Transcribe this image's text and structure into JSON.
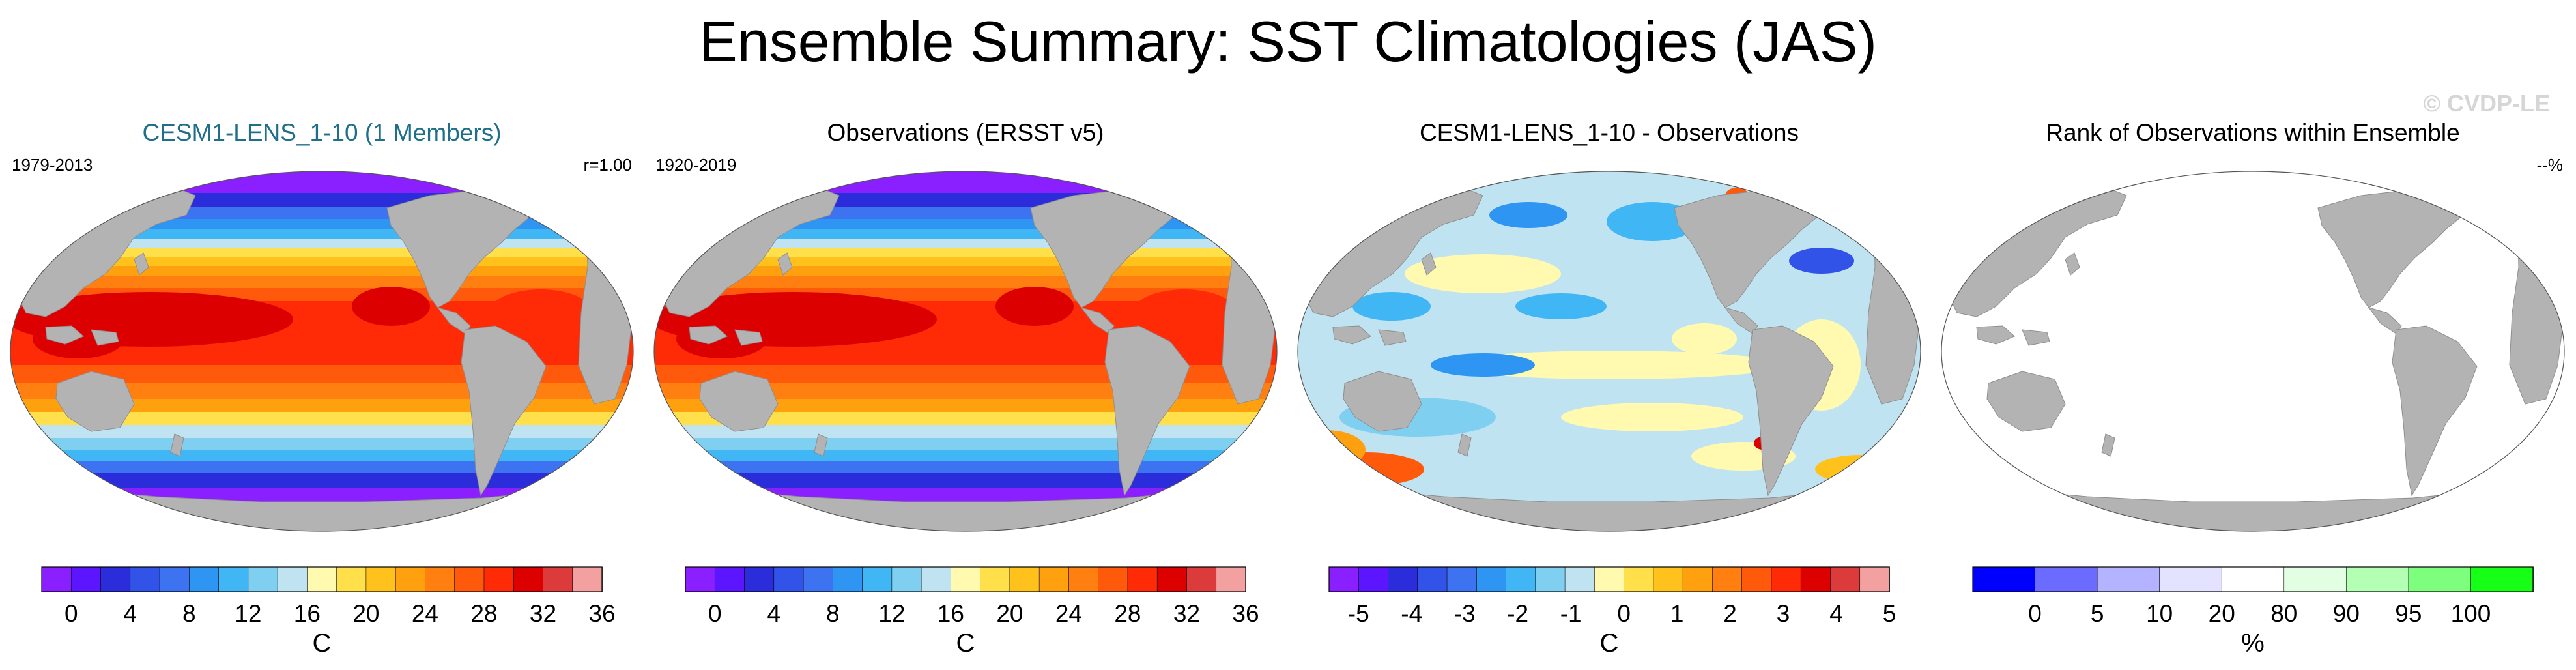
{
  "figure": {
    "title": "Ensemble Summary: SST Climatologies (JAS)",
    "watermark": "© CVDP-LE"
  },
  "colors": {
    "land": "#b3b3b3",
    "title_accent": "#1f6f8b",
    "sst_palette": [
      "#8a1fff",
      "#5c16ff",
      "#2b2ddb",
      "#3253e8",
      "#3d73f0",
      "#2e95f2",
      "#41b6f5",
      "#7fd0f0",
      "#c0e3f2",
      "#fffab0",
      "#ffdf4a",
      "#ffc21c",
      "#ffa10f",
      "#ff8010",
      "#ff5a0c",
      "#ff2a06",
      "#dd0000",
      "#dc3b3b",
      "#f2a0a0"
    ],
    "diff_palette": [
      "#8a1fff",
      "#5c16ff",
      "#2b2ddb",
      "#3253e8",
      "#3d73f0",
      "#2e95f2",
      "#41b6f5",
      "#7fd0f0",
      "#c0e3f2",
      "#fffab0",
      "#ffdf4a",
      "#ffc21c",
      "#ffa10f",
      "#ff8010",
      "#ff5a0c",
      "#ff2a06",
      "#dd0000",
      "#dc3b3b",
      "#f2a0a0"
    ],
    "rank_palette": [
      "#0000ff",
      "#6b6bff",
      "#b3b3ff",
      "#e3e3ff",
      "#ffffff",
      "#e3ffe3",
      "#b3ffb3",
      "#7dff7d",
      "#17ff17"
    ]
  },
  "panels": [
    {
      "title": "CESM1-LENS_1-10 (1 Members)",
      "title_color": "#1f6f8b",
      "left_label": "1979-2013",
      "right_label": "r=1.00",
      "map": "sst",
      "colorbar": {
        "palette": "sst_palette",
        "ticks": [
          "0",
          "4",
          "8",
          "12",
          "16",
          "20",
          "24",
          "28",
          "32",
          "36"
        ],
        "tick_start": 1,
        "unit": "C"
      }
    },
    {
      "title": "Observations (ERSST v5)",
      "title_color": "#000000",
      "left_label": "1920-2019",
      "right_label": "",
      "map": "sst",
      "colorbar": {
        "palette": "sst_palette",
        "ticks": [
          "0",
          "4",
          "8",
          "12",
          "16",
          "20",
          "24",
          "28",
          "32",
          "36"
        ],
        "tick_start": 1,
        "unit": "C"
      }
    },
    {
      "title": "CESM1-LENS_1-10 - Observations",
      "title_color": "#000000",
      "left_label": "",
      "right_label": "",
      "map": "diff",
      "colorbar": {
        "palette": "diff_palette",
        "ticks": [
          "-5",
          "-4",
          "-3",
          "-2",
          "-1",
          "0",
          "1",
          "2",
          "3",
          "4",
          "5"
        ],
        "tick_start": 1,
        "unit": "C"
      }
    },
    {
      "title": "Rank of Observations within Ensemble",
      "title_color": "#000000",
      "left_label": "",
      "right_label": "--%",
      "map": "rank",
      "colorbar": {
        "palette": "rank_palette",
        "ticks": [
          "0",
          "5",
          "10",
          "20",
          "80",
          "90",
          "95",
          "100"
        ],
        "tick_start": 1,
        "unit": "%"
      }
    }
  ],
  "chart_data": [
    {
      "type": "heatmap",
      "title": "CESM1-LENS_1-10 (1 Members)",
      "period": "1979-2013",
      "pattern_correlation": "r=1.00",
      "variable": "SST climatology (JAS)",
      "units": "C",
      "colorbar_levels": [
        0,
        2,
        4,
        6,
        8,
        10,
        12,
        14,
        16,
        18,
        20,
        22,
        24,
        26,
        28,
        30,
        32,
        34,
        36
      ],
      "range": [
        0,
        36
      ]
    },
    {
      "type": "heatmap",
      "title": "Observations (ERSST v5)",
      "period": "1920-2019",
      "variable": "SST climatology (JAS)",
      "units": "C",
      "colorbar_levels": [
        0,
        2,
        4,
        6,
        8,
        10,
        12,
        14,
        16,
        18,
        20,
        22,
        24,
        26,
        28,
        30,
        32,
        34,
        36
      ],
      "range": [
        0,
        36
      ]
    },
    {
      "type": "heatmap",
      "title": "CESM1-LENS_1-10 - Observations",
      "variable": "SST difference",
      "units": "C",
      "colorbar_levels": [
        -5,
        -4,
        -3,
        -2,
        -1,
        0,
        1,
        2,
        3,
        4,
        5
      ],
      "range": [
        -5,
        5
      ]
    },
    {
      "type": "heatmap",
      "title": "Rank of Observations within Ensemble",
      "variable": "rank",
      "units": "%",
      "value_label": "--%",
      "colorbar_levels": [
        0,
        5,
        10,
        20,
        80,
        90,
        95,
        100
      ],
      "range": [
        0,
        100
      ]
    }
  ]
}
